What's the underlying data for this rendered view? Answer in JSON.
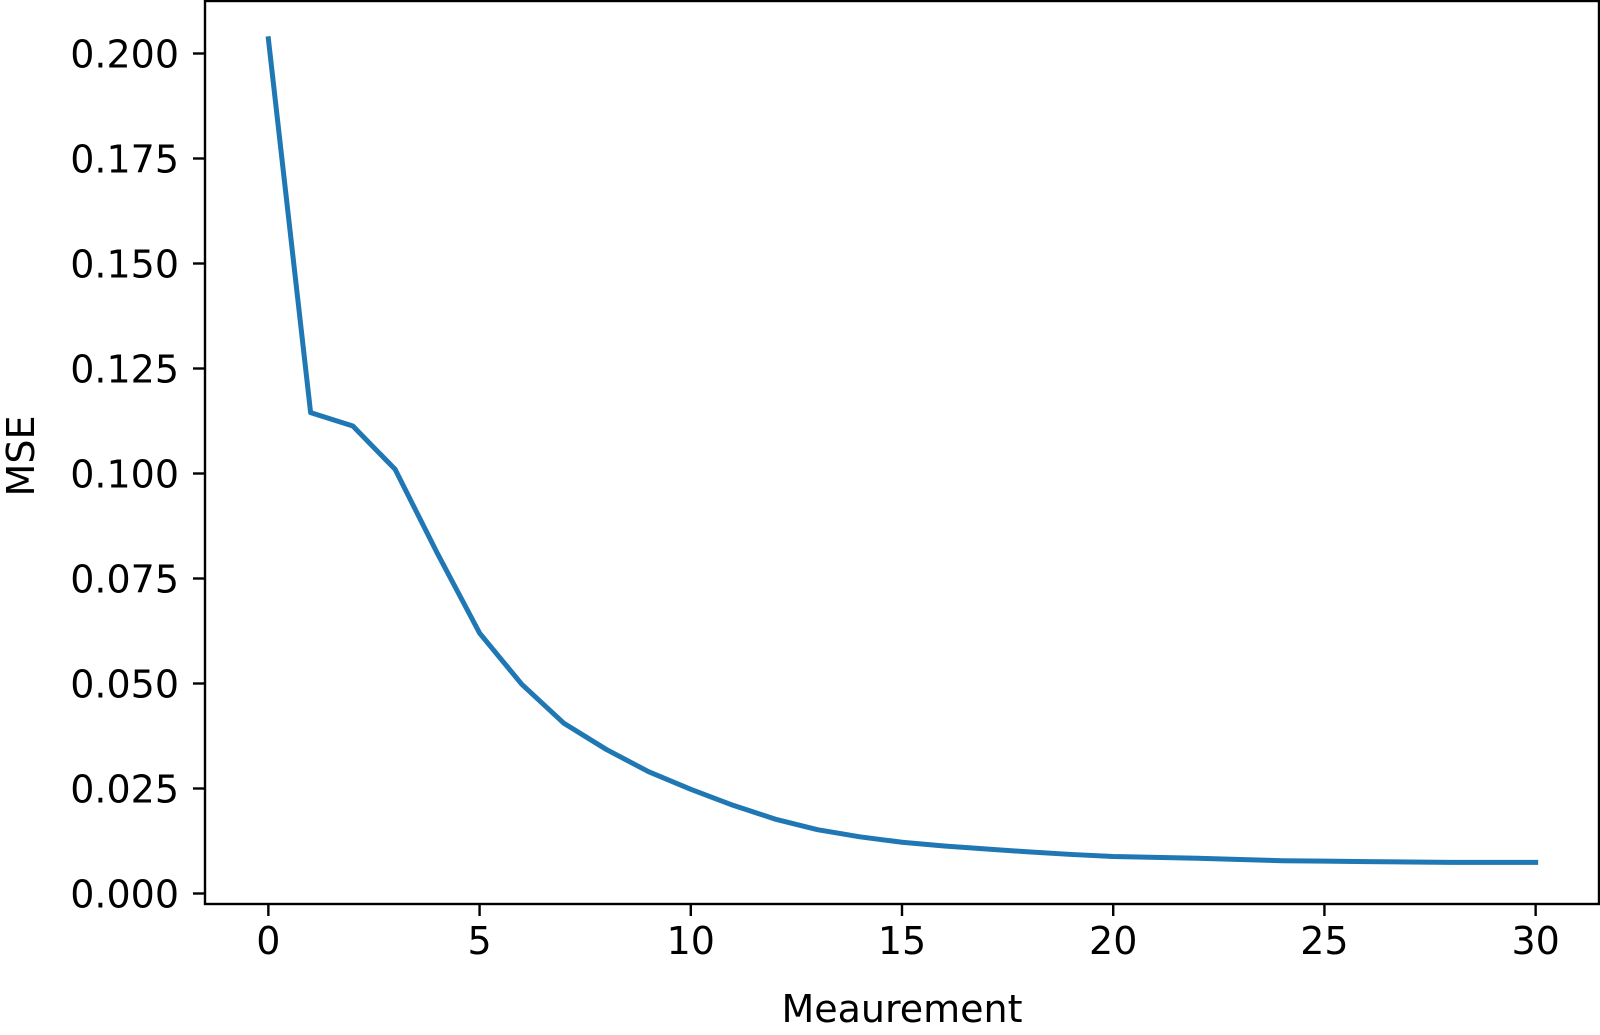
{
  "chart_data": {
    "type": "line",
    "title": "",
    "xlabel": "Meaurement",
    "ylabel": "MSE",
    "xlim": [
      -1.5,
      31.5
    ],
    "ylim": [
      -0.0025,
      0.2125
    ],
    "xticks": [
      0,
      5,
      10,
      15,
      20,
      25,
      30
    ],
    "xtick_labels": [
      "0",
      "5",
      "10",
      "15",
      "20",
      "25",
      "30"
    ],
    "yticks": [
      0.0,
      0.025,
      0.05,
      0.075,
      0.1,
      0.125,
      0.15,
      0.175,
      0.2
    ],
    "ytick_labels": [
      "0.000",
      "0.025",
      "0.050",
      "0.075",
      "0.100",
      "0.125",
      "0.150",
      "0.175",
      "0.200"
    ],
    "grid": false,
    "legend": "none",
    "series": [
      {
        "color": "#1f77b4",
        "x": [
          0,
          1,
          2,
          3,
          4,
          5,
          6,
          7,
          8,
          9,
          10,
          11,
          12,
          13,
          14,
          15,
          16,
          17,
          18,
          19,
          20,
          21,
          22,
          23,
          24,
          25,
          26,
          27,
          28,
          29,
          30
        ],
        "y": [
          0.2035,
          0.1145,
          0.1113,
          0.101,
          0.081,
          0.062,
          0.0498,
          0.0405,
          0.0343,
          0.029,
          0.0248,
          0.021,
          0.0177,
          0.0152,
          0.0135,
          0.0122,
          0.0113,
          0.0106,
          0.0099,
          0.0093,
          0.0088,
          0.0086,
          0.0084,
          0.0081,
          0.0078,
          0.0077,
          0.0076,
          0.0075,
          0.0074,
          0.0074,
          0.0074
        ]
      }
    ]
  }
}
